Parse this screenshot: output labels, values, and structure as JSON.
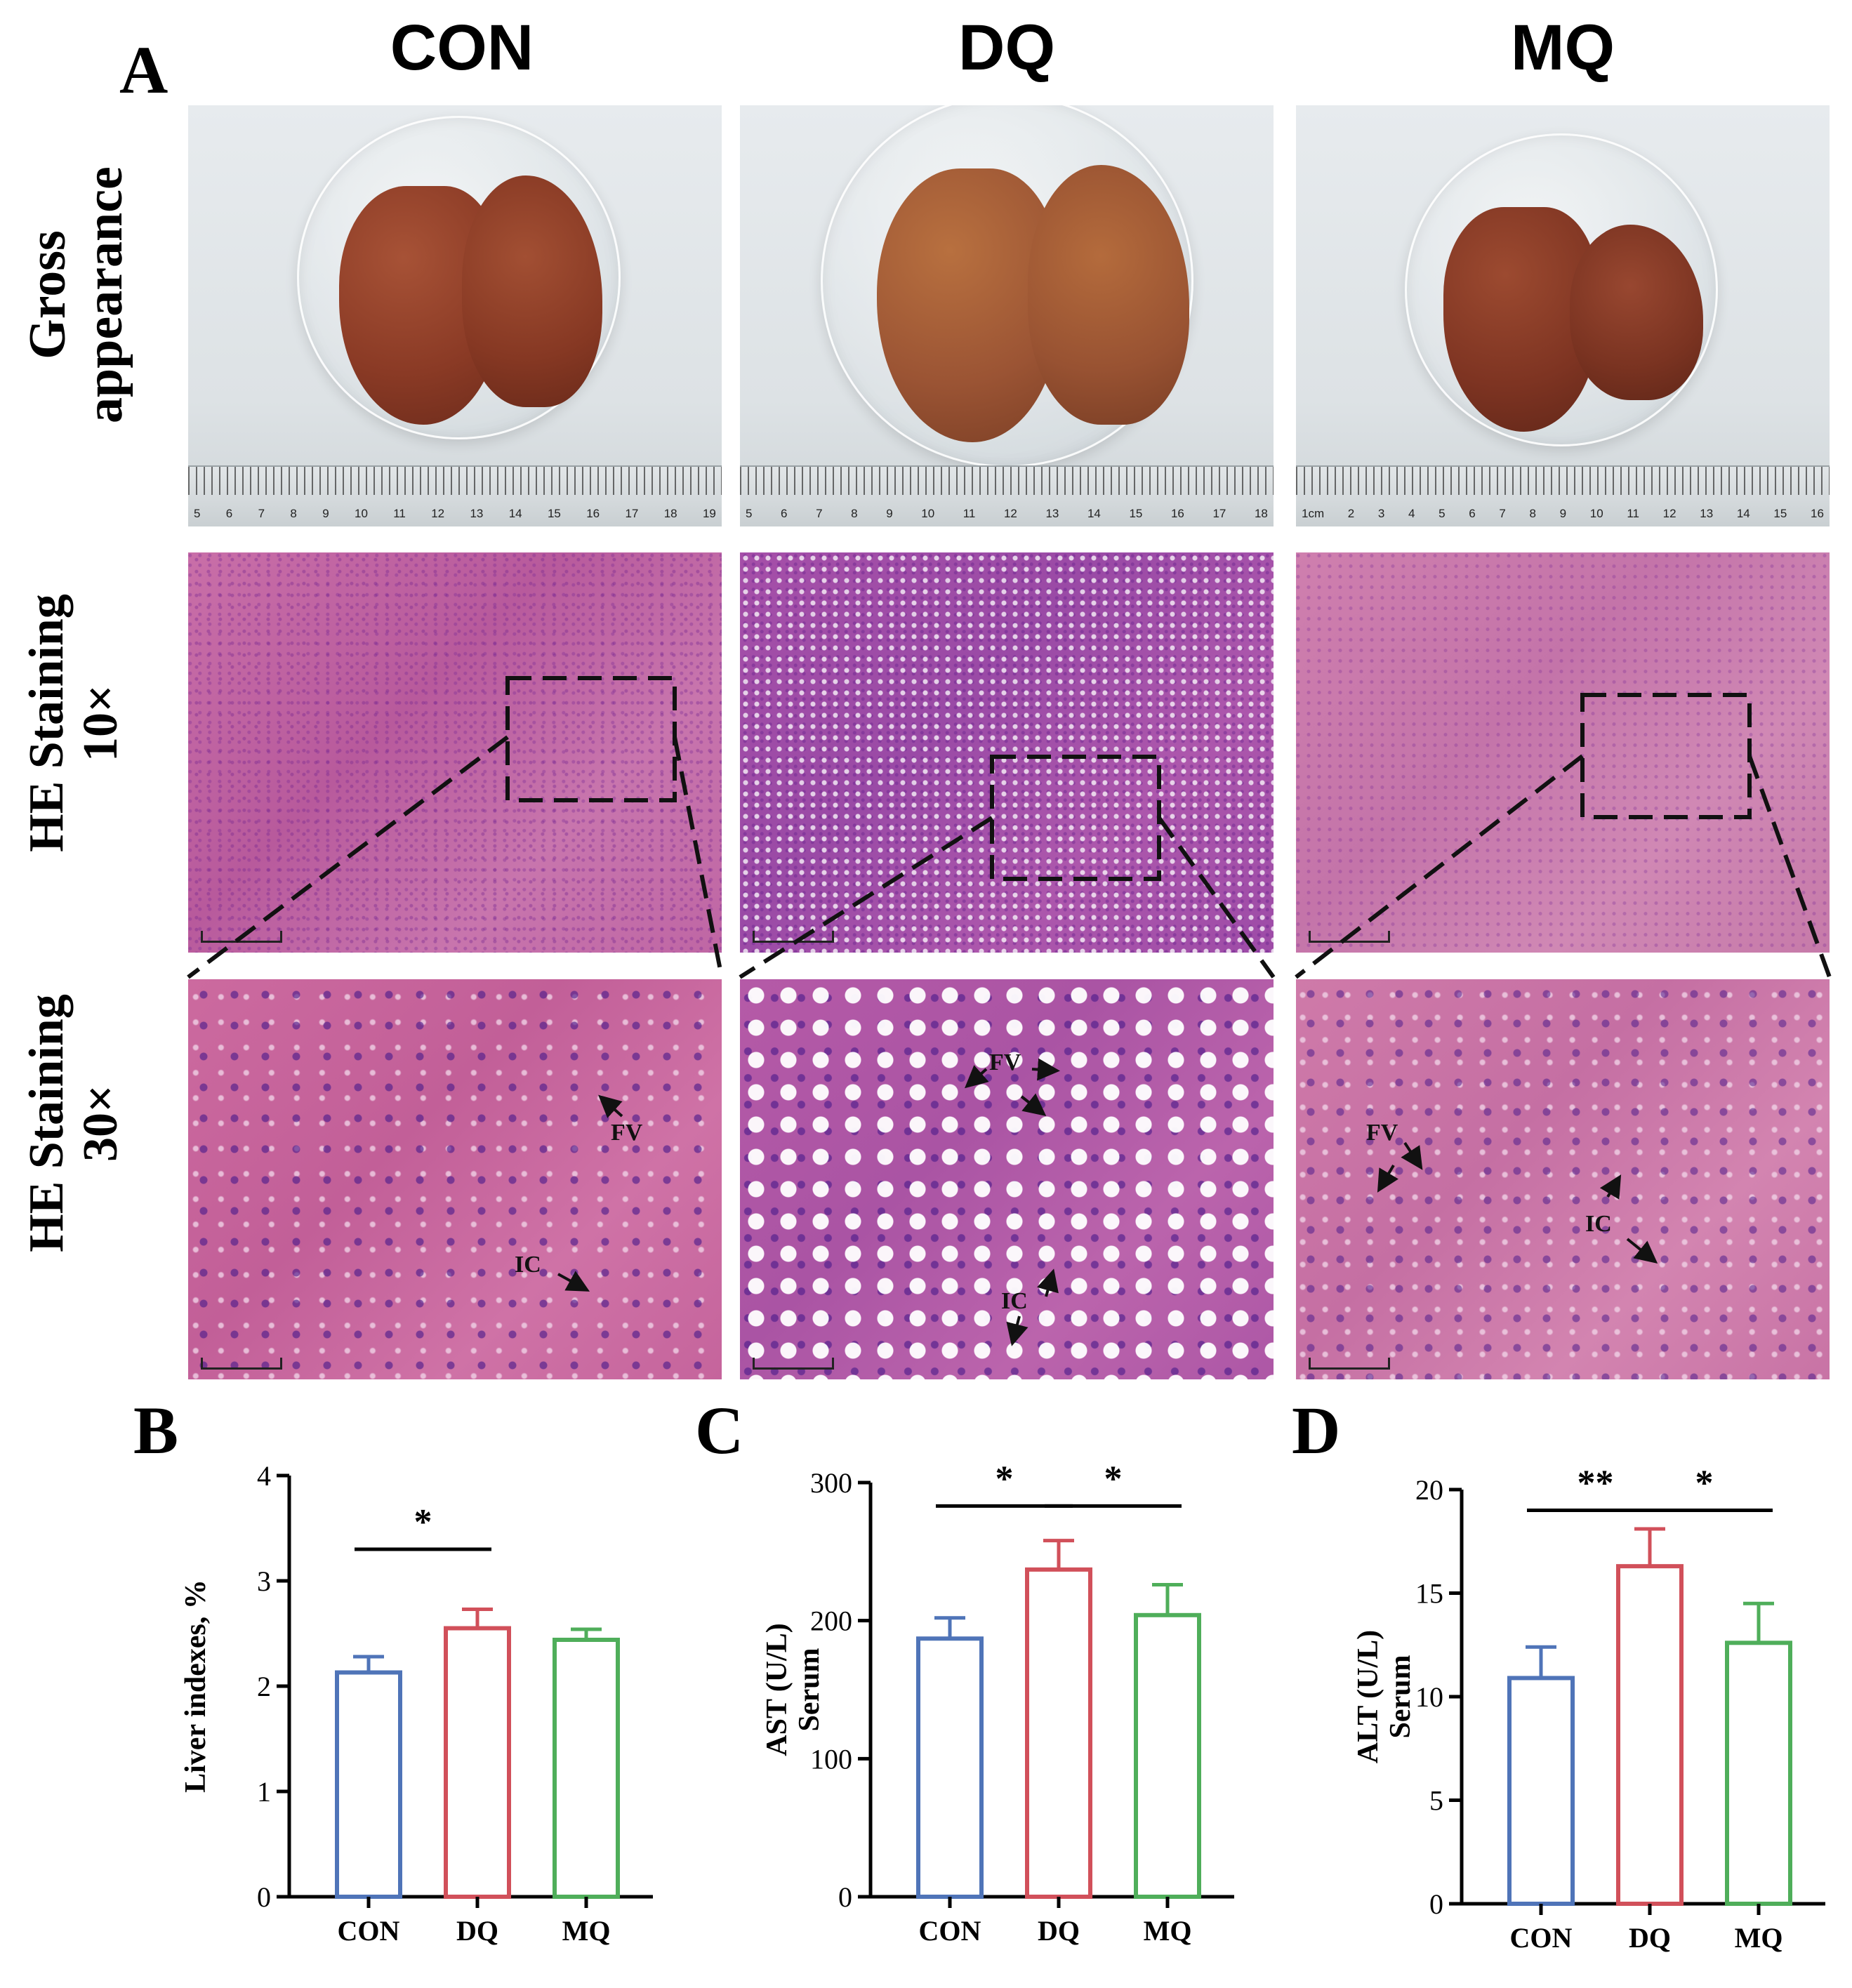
{
  "panel_a": {
    "letter": "A",
    "groups": [
      "CON",
      "DQ",
      "MQ"
    ],
    "rows": [
      {
        "line1": "Gross",
        "line2": "appearance"
      },
      {
        "line1": "HE Staining",
        "line2": "10×"
      },
      {
        "line1": "HE Staining",
        "line2": "30×"
      }
    ],
    "ruler_numbers": [
      [
        "5",
        "6",
        "7",
        "8",
        "9",
        "10",
        "11",
        "12",
        "13",
        "14",
        "15",
        "16",
        "17",
        "18",
        "19"
      ],
      [
        "5",
        "6",
        "7",
        "8",
        "9",
        "10",
        "11",
        "12",
        "13",
        "14",
        "15",
        "16",
        "17",
        "18"
      ],
      [
        "1cm",
        "2",
        "3",
        "4",
        "5",
        "6",
        "7",
        "8",
        "9",
        "10",
        "11",
        "12",
        "13",
        "14",
        "15",
        "16"
      ]
    ],
    "annotations": {
      "con": [
        "FV",
        "IC"
      ],
      "dq": [
        "FV",
        "IC"
      ],
      "mq": [
        "FV",
        "IC"
      ]
    },
    "liver_colors": {
      "con": "#8a3a25",
      "dq": "#9b5434",
      "mq": "#7e3422"
    }
  },
  "chart_data": [
    {
      "panel": "B",
      "type": "bar",
      "categories": [
        "CON",
        "DQ",
        "MQ"
      ],
      "values": [
        2.13,
        2.55,
        2.44
      ],
      "errors": [
        0.15,
        0.18,
        0.1
      ],
      "colors": [
        "#4f74b8",
        "#d1505a",
        "#4fae5a"
      ],
      "ylabel": "Liver indexes, %",
      "ylabel2": "",
      "ylim": [
        0,
        4
      ],
      "yticks": [
        0,
        1,
        2,
        3,
        4
      ],
      "significance": [
        {
          "from": 0,
          "to": 1,
          "label": "*",
          "level": 3.3
        }
      ]
    },
    {
      "panel": "C",
      "type": "bar",
      "categories": [
        "CON",
        "DQ",
        "MQ"
      ],
      "values": [
        187,
        237,
        204
      ],
      "errors": [
        15,
        21,
        22
      ],
      "colors": [
        "#4f74b8",
        "#d1505a",
        "#4fae5a"
      ],
      "ylabel": "AST (U/L)",
      "ylabel2": "Serum",
      "ylim": [
        0,
        300
      ],
      "yticks": [
        0,
        100,
        200,
        300
      ],
      "significance": [
        {
          "from": 0,
          "to": 1,
          "label": "*",
          "level": 283
        },
        {
          "from": 1,
          "to": 2,
          "label": "*",
          "level": 283
        }
      ]
    },
    {
      "panel": "D",
      "type": "bar",
      "categories": [
        "CON",
        "DQ",
        "MQ"
      ],
      "values": [
        10.9,
        16.3,
        12.6
      ],
      "errors": [
        1.5,
        1.8,
        1.9
      ],
      "colors": [
        "#4f74b8",
        "#d1505a",
        "#4fae5a"
      ],
      "ylabel": "ALT (U/L)",
      "ylabel2": "Serum",
      "ylim": [
        0,
        20
      ],
      "yticks": [
        0,
        5,
        10,
        15,
        20
      ],
      "significance": [
        {
          "from": 0,
          "to": 1,
          "label": "**",
          "level": 19.0
        },
        {
          "from": 1,
          "to": 2,
          "label": "*",
          "level": 19.0
        }
      ]
    }
  ]
}
